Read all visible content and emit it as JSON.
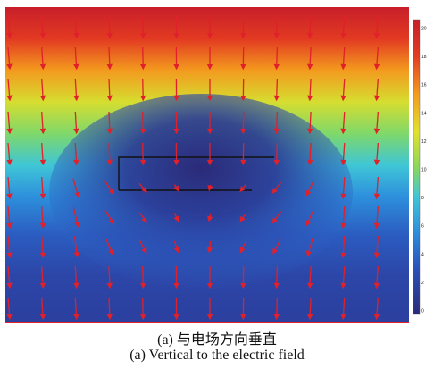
{
  "figure": {
    "caption_cn": "(a) 与电场方向垂直",
    "caption_en": "(a) Vertical to the electric field"
  },
  "colorbar": {
    "tick_labels": [
      "20",
      "18",
      "16",
      "14",
      "12",
      "10",
      "8",
      "6",
      "4",
      "2",
      "0"
    ],
    "colors": [
      "#c81e2a",
      "#e23a22",
      "#f06a1c",
      "#f6b21e",
      "#e2e12c",
      "#9fdc4a",
      "#4fd0b0",
      "#34b6e4",
      "#2a7fd6",
      "#2a4fb8",
      "#2b3596",
      "#2a2a78"
    ]
  },
  "arrow_color": "#e0202a"
}
